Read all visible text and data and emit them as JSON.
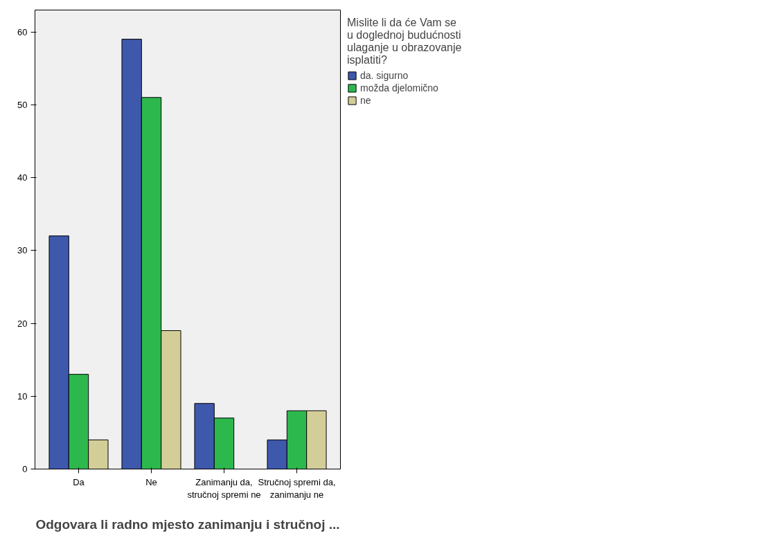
{
  "chart_data": {
    "type": "bar",
    "xlabel": "Odgovara li radno mjesto zanimanju i stručnoj ...",
    "legend_title": "Mislite li da će Vam se u doglednoj budućnosti ulaganje u obrazovanje isplatiti?",
    "categories": [
      "Da",
      "Ne",
      "Zanimanju da, stručnoj spremi ne",
      "Stručnoj spremi da, zanimanju ne"
    ],
    "series": [
      {
        "name": "da. sigurno",
        "color": "#3e58ac",
        "values": [
          32,
          59,
          9,
          4
        ]
      },
      {
        "name": "možda djelomično",
        "color": "#2db84d",
        "values": [
          13,
          51,
          7,
          8
        ]
      },
      {
        "name": "ne",
        "color": "#d3ce97",
        "values": [
          4,
          19,
          null,
          8
        ]
      }
    ],
    "ylim": [
      0,
      63
    ],
    "yticks": [
      0,
      10,
      20,
      30,
      40,
      50,
      60
    ],
    "grid": false,
    "legend": "top right"
  }
}
